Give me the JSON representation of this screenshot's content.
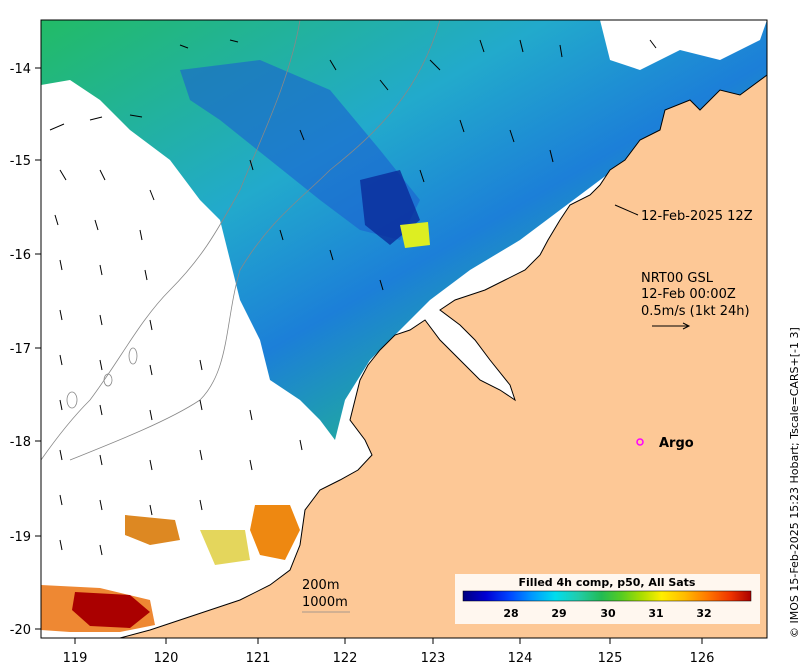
{
  "map": {
    "x_ticks": [
      "119",
      "120",
      "121",
      "122",
      "123",
      "124",
      "125",
      "126"
    ],
    "y_ticks": [
      "-14",
      "-15",
      "-16",
      "-17",
      "-18",
      "-19",
      "-20"
    ],
    "land_color": "#fdc896",
    "coast_color": "#000000"
  },
  "annotations": {
    "track_time": "12-Feb-2025 12Z",
    "current_title": "NRT00 GSL",
    "current_date": "12-Feb 00:00Z",
    "current_scale": "0.5m/s (1kt 24h)",
    "argo_label": "Argo",
    "argo_color": "#ff00ff",
    "contour_200": "200m",
    "contour_1000": "1000m"
  },
  "colorbar": {
    "title": "Filled 4h comp, p50, All Sats",
    "ticks": [
      "28",
      "29",
      "30",
      "31",
      "32"
    ],
    "colors": [
      "#00007f",
      "#0000d4",
      "#0044ff",
      "#0099ff",
      "#00ddee",
      "#22ccaa",
      "#22bb55",
      "#55cc22",
      "#aadd00",
      "#ffee00",
      "#ffbb00",
      "#ff7700",
      "#ee3300",
      "#aa0000"
    ]
  },
  "credit": "© IMOS 15-Feb-2025 15:23 Hobart; Tscale=CARS+[-1 3]"
}
